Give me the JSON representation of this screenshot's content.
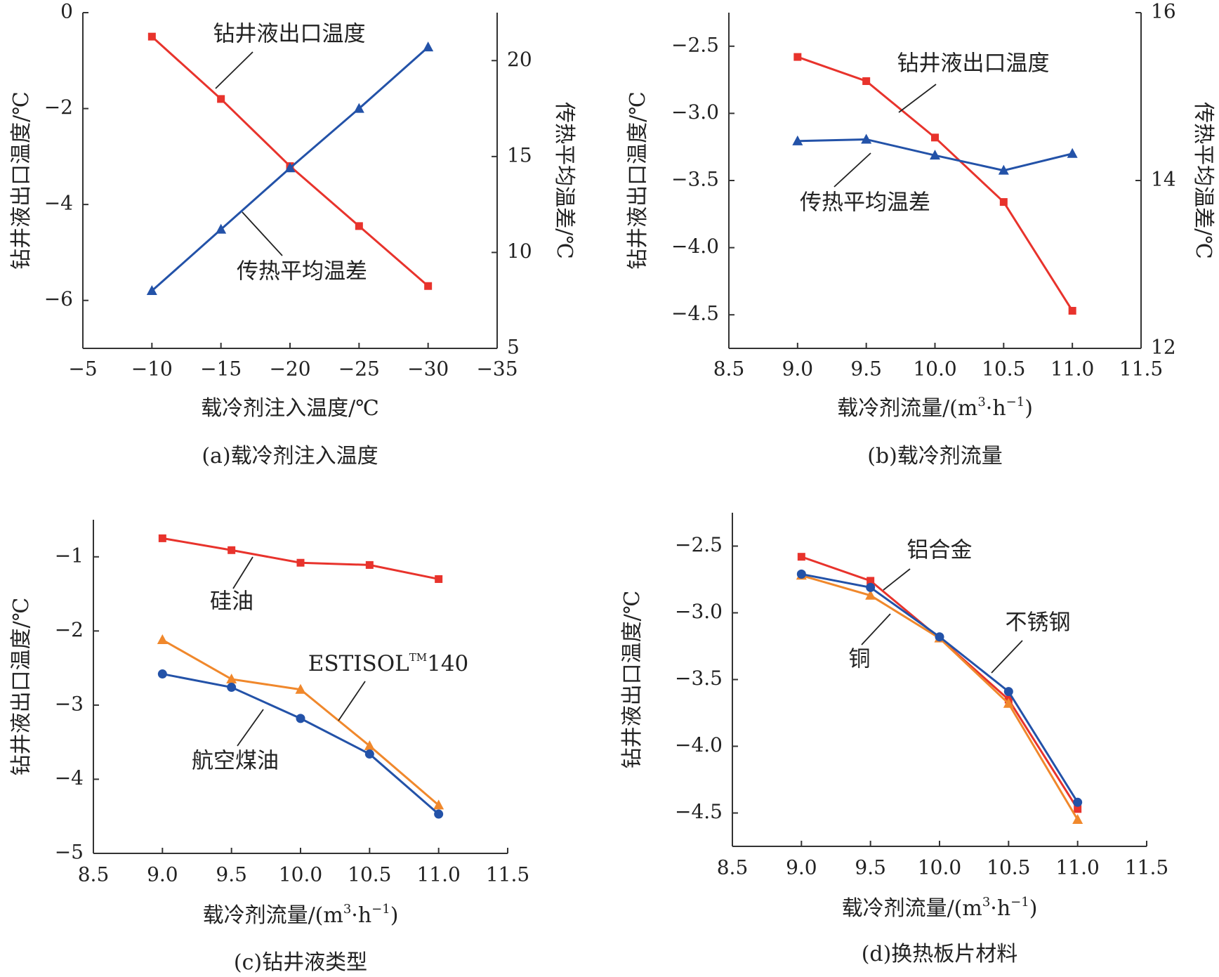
{
  "colors": {
    "red": "#e8332c",
    "blue": "#2352a8",
    "orange": "#f0882c",
    "axis": "#333333"
  },
  "chart_data": [
    {
      "type": "line",
      "caption": "(a)载冷剂注入温度",
      "xlabel": "载冷剂注入温度/℃",
      "ylabel": "钻井液出口温度/℃",
      "y2label": "传热平均温差/℃",
      "xlim": [
        -5,
        -35
      ],
      "ylim": [
        -7,
        0
      ],
      "y2lim": [
        5,
        22.5
      ],
      "xticks": [
        -5,
        -10,
        -15,
        -20,
        -25,
        -30,
        -35
      ],
      "xtick_labels": [
        "−5",
        "−10",
        "−15",
        "−20",
        "−25",
        "−30",
        "−35"
      ],
      "yticks": [
        0,
        -2,
        -4,
        -6
      ],
      "ytick_labels": [
        "0",
        "−2",
        "−4",
        "−6"
      ],
      "y2ticks": [
        5,
        10,
        15,
        20
      ],
      "y2tick_labels": [
        "5",
        "10",
        "15",
        "20"
      ],
      "x": [
        -10,
        -15,
        -20,
        -25,
        -30
      ],
      "series": [
        {
          "name": "钻井液出口温度",
          "axis": "left",
          "color": "red",
          "marker": "square",
          "values": [
            -0.5,
            -1.8,
            -3.2,
            -4.45,
            -5.7
          ]
        },
        {
          "name": "传热平均温差",
          "axis": "right",
          "color": "blue",
          "marker": "triangle",
          "values": [
            8.0,
            11.2,
            14.4,
            17.5,
            20.7
          ]
        }
      ],
      "annotations": [
        {
          "text": "钻井液出口温度",
          "series": 0
        },
        {
          "text": "传热平均温差",
          "series": 1
        }
      ]
    },
    {
      "type": "line",
      "caption": "(b)载冷剂流量",
      "xlabel": "载冷剂流量/(m³·h⁻¹)",
      "ylabel": "钻井液出口温度/℃",
      "y2label": "传热平均温差/℃",
      "xlim": [
        8.5,
        11.5
      ],
      "ylim": [
        -4.75,
        -2.25
      ],
      "y2lim": [
        12,
        16
      ],
      "xticks": [
        8.5,
        9.0,
        9.5,
        10.0,
        10.5,
        11.0,
        11.5
      ],
      "xtick_labels": [
        "8.5",
        "9.0",
        "9.5",
        "10.0",
        "10.5",
        "11.0",
        "11.5"
      ],
      "yticks": [
        -2.5,
        -3.0,
        -3.5,
        -4.0,
        -4.5
      ],
      "ytick_labels": [
        "−2.5",
        "−3.0",
        "−3.5",
        "−4.0",
        "−4.5"
      ],
      "y2ticks": [
        12,
        14,
        16
      ],
      "y2tick_labels": [
        "12",
        "14",
        "16"
      ],
      "x": [
        9.0,
        9.5,
        10.0,
        10.5,
        11.0
      ],
      "series": [
        {
          "name": "钻井液出口温度",
          "axis": "left",
          "color": "red",
          "marker": "square",
          "values": [
            -2.58,
            -2.76,
            -3.18,
            -3.66,
            -4.47
          ]
        },
        {
          "name": "传热平均温差",
          "axis": "right",
          "color": "blue",
          "marker": "triangle",
          "values": [
            14.47,
            14.49,
            14.3,
            14.12,
            14.32
          ]
        }
      ],
      "annotations": [
        {
          "text": "钻井液出口温度",
          "series": 0
        },
        {
          "text": "传热平均温差",
          "series": 1
        }
      ]
    },
    {
      "type": "line",
      "caption": "(c)钻井液类型",
      "xlabel": "载冷剂流量/(m³·h⁻¹)",
      "ylabel": "钻井液出口温度/℃",
      "xlim": [
        8.5,
        11.5
      ],
      "ylim": [
        -5,
        -0.5
      ],
      "xticks": [
        8.5,
        9.0,
        9.5,
        10.0,
        10.5,
        11.0,
        11.5
      ],
      "xtick_labels": [
        "8.5",
        "9.0",
        "9.5",
        "10.0",
        "10.5",
        "11.0",
        "11.5"
      ],
      "yticks": [
        -1,
        -2,
        -3,
        -4,
        -5
      ],
      "ytick_labels": [
        "−1",
        "−2",
        "−3",
        "−4",
        "−5"
      ],
      "x": [
        9.0,
        9.5,
        10.0,
        10.5,
        11.0
      ],
      "series": [
        {
          "name": "硅油",
          "axis": "left",
          "color": "red",
          "marker": "square",
          "values": [
            -0.75,
            -0.91,
            -1.08,
            -1.11,
            -1.3
          ]
        },
        {
          "name": "ESTISOL™140",
          "axis": "left",
          "color": "orange",
          "marker": "triangle",
          "values": [
            -2.12,
            -2.65,
            -2.79,
            -3.55,
            -4.35
          ]
        },
        {
          "name": "航空煤油",
          "axis": "left",
          "color": "blue",
          "marker": "circle",
          "values": [
            -2.58,
            -2.76,
            -3.18,
            -3.66,
            -4.47
          ]
        }
      ],
      "annotations": [
        {
          "text": "硅油",
          "series": 0
        },
        {
          "text": "ESTISOL™140",
          "series": 1
        },
        {
          "text": "航空煤油",
          "series": 2
        }
      ]
    },
    {
      "type": "line",
      "caption": "(d)换热板片材料",
      "xlabel": "载冷剂流量/(m³·h⁻¹)",
      "ylabel": "钻井液出口温度/℃",
      "xlim": [
        8.5,
        11.5
      ],
      "ylim": [
        -4.75,
        -2.25
      ],
      "xticks": [
        8.5,
        9.0,
        9.5,
        10.0,
        10.5,
        11.0,
        11.5
      ],
      "xtick_labels": [
        "8.5",
        "9.0",
        "9.5",
        "10.0",
        "10.5",
        "11.0",
        "11.5"
      ],
      "yticks": [
        -2.5,
        -3.0,
        -3.5,
        -4.0,
        -4.5
      ],
      "ytick_labels": [
        "−2.5",
        "−3.0",
        "−3.5",
        "−4.0",
        "−4.5"
      ],
      "x": [
        9.0,
        9.5,
        10.0,
        10.5,
        11.0
      ],
      "series": [
        {
          "name": "铝合金",
          "axis": "left",
          "color": "red",
          "marker": "square",
          "values": [
            -2.58,
            -2.76,
            -3.19,
            -3.65,
            -4.47
          ]
        },
        {
          "name": "铜",
          "axis": "left",
          "color": "orange",
          "marker": "triangle",
          "values": [
            -2.72,
            -2.87,
            -3.19,
            -3.68,
            -4.55
          ]
        },
        {
          "name": "不锈钢",
          "axis": "left",
          "color": "blue",
          "marker": "circle",
          "values": [
            -2.71,
            -2.81,
            -3.18,
            -3.59,
            -4.42
          ]
        }
      ],
      "annotations": [
        {
          "text": "铝合金",
          "series": 0
        },
        {
          "text": "铜",
          "series": 1
        },
        {
          "text": "不锈钢",
          "series": 2
        }
      ]
    }
  ]
}
